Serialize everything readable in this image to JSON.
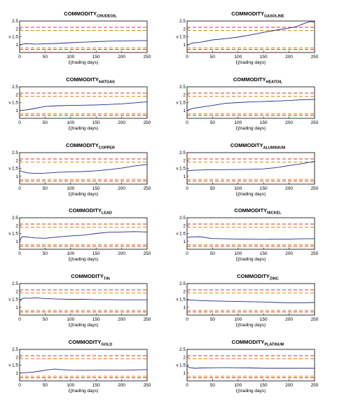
{
  "colors": {
    "series": "#1f2a8a",
    "band_outer": "#d9361a",
    "band_inner": "#d98a1a",
    "axis": "#000000"
  },
  "chart_data": [
    {
      "type": "line",
      "title_main": "COMMODITY",
      "title_sub": "CRUDEOIL",
      "xlabel": "ξ(trading days)",
      "ylabel": "ν",
      "xlim": [
        0,
        250
      ],
      "ylim": [
        0.5,
        2.5
      ],
      "xticks": [
        "0",
        "50",
        "100",
        "150",
        "200",
        "250"
      ],
      "yticks": [
        "1",
        "1.5",
        "2",
        "2.5"
      ],
      "reference_lines": [
        2.1,
        1.9,
        0.8,
        0.7
      ],
      "x": [
        0,
        5,
        10,
        20,
        30,
        50,
        75,
        100,
        125,
        150,
        175,
        200,
        225,
        250
      ],
      "y": [
        0.95,
        1.02,
        1.06,
        1.05,
        1.04,
        1.05,
        1.08,
        1.12,
        1.16,
        1.19,
        1.22,
        1.24,
        1.25,
        1.26
      ]
    },
    {
      "type": "line",
      "title_main": "COMMODITY",
      "title_sub": "GASOLINE",
      "xlabel": "ξ(trading days)",
      "ylabel": "ν",
      "xlim": [
        0,
        250
      ],
      "ylim": [
        0.5,
        2.5
      ],
      "xticks": [
        "0",
        "50",
        "100",
        "150",
        "200",
        "250"
      ],
      "yticks": [
        "1",
        "1.5",
        "2",
        "2.5"
      ],
      "reference_lines": [
        2.1,
        1.9,
        0.8,
        0.7
      ],
      "x": [
        0,
        10,
        25,
        50,
        75,
        100,
        125,
        150,
        175,
        200,
        215,
        230,
        240,
        250
      ],
      "y": [
        0.95,
        1.1,
        1.15,
        1.3,
        1.38,
        1.48,
        1.62,
        1.78,
        1.92,
        2.05,
        2.15,
        2.35,
        2.45,
        2.45
      ]
    },
    {
      "type": "line",
      "title_main": "COMMODITY",
      "title_sub": "NATGAS",
      "xlabel": "ξ(trading days)",
      "ylabel": "ν",
      "xlim": [
        0,
        250
      ],
      "ylim": [
        0.5,
        2.5
      ],
      "xticks": [
        "0",
        "50",
        "100",
        "150",
        "200",
        "250"
      ],
      "yticks": [
        "1",
        "1.5",
        "2",
        "2.5"
      ],
      "reference_lines": [
        2.1,
        1.9,
        0.8,
        0.7
      ],
      "x": [
        0,
        10,
        25,
        50,
        75,
        100,
        125,
        150,
        175,
        200,
        225,
        250
      ],
      "y": [
        1.0,
        1.02,
        1.1,
        1.25,
        1.3,
        1.32,
        1.33,
        1.35,
        1.38,
        1.42,
        1.48,
        1.55
      ]
    },
    {
      "type": "line",
      "title_main": "COMMODITY",
      "title_sub": "HEATOIL",
      "xlabel": "ξ(trading days)",
      "ylabel": "ν",
      "xlim": [
        0,
        250
      ],
      "ylim": [
        0.5,
        2.5
      ],
      "xticks": [
        "0",
        "50",
        "100",
        "150",
        "200",
        "250"
      ],
      "yticks": [
        "1",
        "1.5",
        "2",
        "2.5"
      ],
      "reference_lines": [
        2.1,
        1.9,
        0.8,
        0.7
      ],
      "x": [
        0,
        10,
        25,
        50,
        75,
        100,
        125,
        150,
        175,
        200,
        225,
        250
      ],
      "y": [
        1.0,
        1.12,
        1.2,
        1.32,
        1.45,
        1.5,
        1.55,
        1.57,
        1.6,
        1.63,
        1.68,
        1.7
      ]
    },
    {
      "type": "line",
      "title_main": "COMMODITY",
      "title_sub": "COPPER",
      "xlabel": "ξ(trading days)",
      "ylabel": "ν",
      "xlim": [
        0,
        250
      ],
      "ylim": [
        0.5,
        2.5
      ],
      "xticks": [
        "0",
        "50",
        "100",
        "150",
        "200",
        "250"
      ],
      "yticks": [
        "1",
        "1.5",
        "2",
        "2.5"
      ],
      "reference_lines": [
        2.1,
        1.9,
        0.8,
        0.7
      ],
      "x": [
        0,
        5,
        15,
        30,
        50,
        75,
        100,
        125,
        150,
        175,
        200,
        225,
        250
      ],
      "y": [
        1.35,
        1.3,
        1.22,
        1.18,
        1.2,
        1.25,
        1.28,
        1.3,
        1.35,
        1.42,
        1.52,
        1.65,
        1.75
      ]
    },
    {
      "type": "line",
      "title_main": "COMMODITY",
      "title_sub": "ALUMINIUM",
      "xlabel": "ξ(trading days)",
      "ylabel": "ν",
      "xlim": [
        0,
        250
      ],
      "ylim": [
        0.5,
        2.5
      ],
      "xticks": [
        "0",
        "50",
        "100",
        "150",
        "200",
        "250"
      ],
      "yticks": [
        "1",
        "1.5",
        "2",
        "2.5"
      ],
      "reference_lines": [
        2.1,
        1.9,
        0.8,
        0.7
      ],
      "x": [
        0,
        10,
        25,
        50,
        75,
        100,
        125,
        150,
        175,
        200,
        225,
        250
      ],
      "y": [
        1.35,
        1.38,
        1.4,
        1.42,
        1.42,
        1.43,
        1.44,
        1.47,
        1.55,
        1.68,
        1.8,
        1.95
      ]
    },
    {
      "type": "line",
      "title_main": "COMMODITY",
      "title_sub": "LEAD",
      "xlabel": "ξ(trading days)",
      "ylabel": "ν",
      "xlim": [
        0,
        250
      ],
      "ylim": [
        0.5,
        2.5
      ],
      "xticks": [
        "0",
        "50",
        "100",
        "150",
        "200",
        "250"
      ],
      "yticks": [
        "1",
        "1.5",
        "2",
        "2.5"
      ],
      "reference_lines": [
        2.1,
        1.9,
        0.8,
        0.7
      ],
      "x": [
        0,
        5,
        15,
        30,
        50,
        75,
        100,
        125,
        150,
        175,
        200,
        225,
        250
      ],
      "y": [
        1.05,
        1.3,
        1.28,
        1.22,
        1.2,
        1.28,
        1.35,
        1.4,
        1.5,
        1.58,
        1.6,
        1.62,
        1.6
      ]
    },
    {
      "type": "line",
      "title_main": "COMMODITY",
      "title_sub": "NICKEL",
      "xlabel": "ξ(trading days)",
      "ylabel": "ν",
      "xlim": [
        0,
        250
      ],
      "ylim": [
        0.5,
        2.5
      ],
      "xticks": [
        "0",
        "50",
        "100",
        "150",
        "200",
        "250"
      ],
      "yticks": [
        "1",
        "1.5",
        "2",
        "2.5"
      ],
      "reference_lines": [
        2.1,
        1.9,
        0.8,
        0.7
      ],
      "x": [
        0,
        10,
        25,
        40,
        50,
        75,
        100,
        125,
        150,
        175,
        200,
        225,
        250
      ],
      "y": [
        1.25,
        1.28,
        1.3,
        1.22,
        1.18,
        1.16,
        1.15,
        1.14,
        1.13,
        1.14,
        1.15,
        1.16,
        1.17
      ]
    },
    {
      "type": "line",
      "title_main": "COMMODITY",
      "title_sub": "TIN",
      "xlabel": "ξ(trading days)",
      "ylabel": "ν",
      "xlim": [
        0,
        250
      ],
      "ylim": [
        0.5,
        2.5
      ],
      "xticks": [
        "0",
        "50",
        "100",
        "150",
        "200",
        "250"
      ],
      "yticks": [
        "1",
        "1.5",
        "2",
        "2.5"
      ],
      "reference_lines": [
        2.1,
        1.9,
        0.8,
        0.7
      ],
      "x": [
        0,
        5,
        10,
        20,
        30,
        50,
        75,
        100,
        125,
        150,
        175,
        200,
        225,
        250
      ],
      "y": [
        1.35,
        1.55,
        1.58,
        1.56,
        1.6,
        1.55,
        1.52,
        1.5,
        1.5,
        1.48,
        1.48,
        1.47,
        1.47,
        1.47
      ]
    },
    {
      "type": "line",
      "title_main": "COMMODITY",
      "title_sub": "ZINC",
      "xlabel": "ξ(trading days)",
      "ylabel": "ν",
      "xlim": [
        0,
        250
      ],
      "ylim": [
        0.5,
        2.5
      ],
      "xticks": [
        "0",
        "50",
        "100",
        "150",
        "200",
        "250"
      ],
      "yticks": [
        "1",
        "1.5",
        "2",
        "2.5"
      ],
      "reference_lines": [
        2.1,
        1.9,
        0.8,
        0.7
      ],
      "x": [
        0,
        10,
        25,
        50,
        75,
        100,
        125,
        150,
        175,
        200,
        225,
        250
      ],
      "y": [
        1.45,
        1.45,
        1.42,
        1.4,
        1.38,
        1.36,
        1.35,
        1.33,
        1.3,
        1.28,
        1.28,
        1.3
      ]
    },
    {
      "type": "line",
      "title_main": "COMMODITY",
      "title_sub": "GOLD",
      "xlabel": "ξ(trading days)",
      "ylabel": "ν",
      "xlim": [
        0,
        250
      ],
      "ylim": [
        0.5,
        2.5
      ],
      "xticks": [
        "0",
        "50",
        "100",
        "150",
        "200",
        "250"
      ],
      "yticks": [
        "1",
        "1.5",
        "2",
        "2.5"
      ],
      "reference_lines": [
        2.1,
        1.9,
        0.8,
        0.7
      ],
      "x": [
        0,
        10,
        25,
        40,
        55,
        70,
        80,
        100,
        125,
        150,
        175,
        200,
        225,
        250
      ],
      "y": [
        1.0,
        1.02,
        1.05,
        1.12,
        1.2,
        1.25,
        1.22,
        1.18,
        1.17,
        1.18,
        1.18,
        1.18,
        1.2,
        1.22
      ]
    },
    {
      "type": "line",
      "title_main": "COMMODITY",
      "title_sub": "PLATINUM",
      "xlabel": "ξ(trading days)",
      "ylabel": "ν",
      "xlim": [
        0,
        250
      ],
      "ylim": [
        0.5,
        2.5
      ],
      "xticks": [
        "0",
        "50",
        "100",
        "150",
        "200",
        "250"
      ],
      "yticks": [
        "1",
        "1.5",
        "2",
        "2.5"
      ],
      "reference_lines": [
        2.1,
        1.9,
        0.8,
        0.7
      ],
      "x": [
        0,
        5,
        15,
        30,
        50,
        75,
        100,
        125,
        150,
        175,
        200,
        225,
        250
      ],
      "y": [
        1.45,
        1.35,
        1.3,
        1.32,
        1.33,
        1.34,
        1.33,
        1.32,
        1.3,
        1.3,
        1.3,
        1.3,
        1.3
      ]
    }
  ]
}
